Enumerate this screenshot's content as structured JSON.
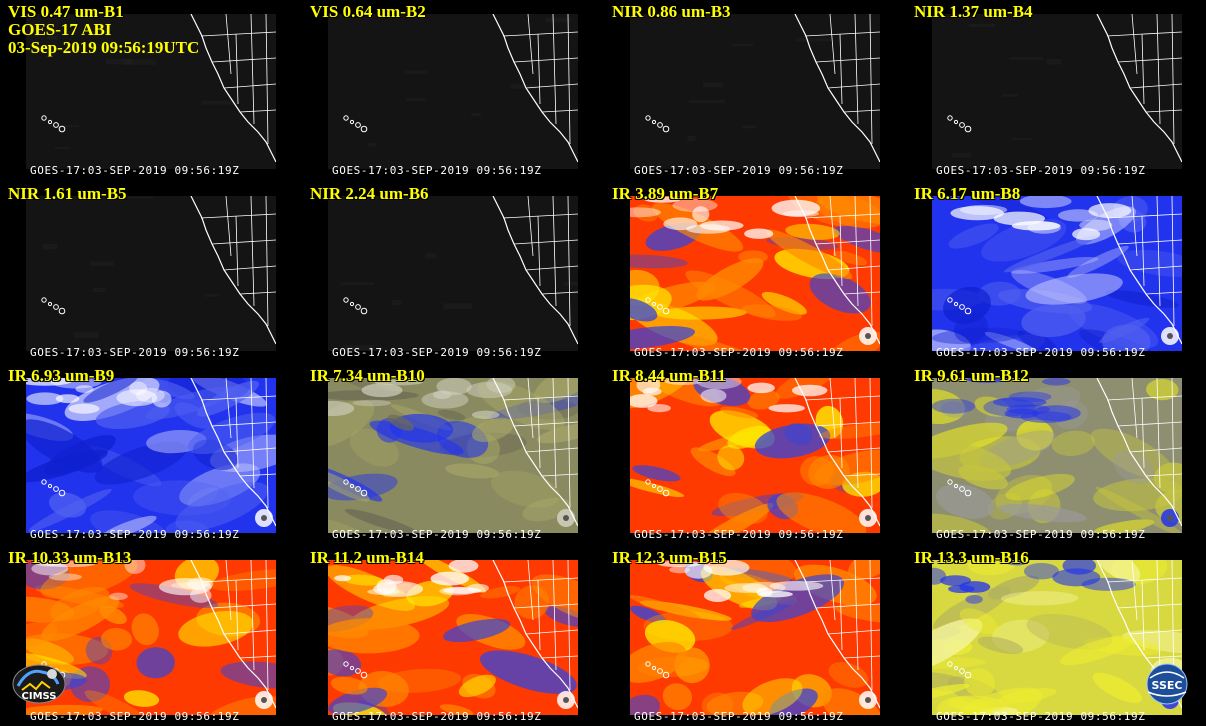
{
  "header": {
    "satellite_line": "GOES-17 ABI",
    "time_line": "03-Sep-2019 09:56:19UTC"
  },
  "panels": [
    {
      "title": "VIS 0.47 um-B1",
      "stamp": "GOES-17:03-SEP-2019 09:56:19Z",
      "palette": "dark"
    },
    {
      "title": "VIS 0.64 um-B2",
      "stamp": "GOES-17:03-SEP-2019 09:56:19Z",
      "palette": "dark"
    },
    {
      "title": "NIR 0.86 um-B3",
      "stamp": "GOES-17:03-SEP-2019 09:56:19Z",
      "palette": "dark"
    },
    {
      "title": "NIR 1.37 um-B4",
      "stamp": "GOES-17:03-SEP-2019 09:56:19Z",
      "palette": "dark"
    },
    {
      "title": "NIR 1.61 um-B5",
      "stamp": "GOES-17:03-SEP-2019 09:56:19Z",
      "palette": "dark"
    },
    {
      "title": "NIR 2.24 um-B6",
      "stamp": "GOES-17:03-SEP-2019 09:56:19Z",
      "palette": "dark"
    },
    {
      "title": "IR 3.89 um-B7",
      "stamp": "GOES-17:03-SEP-2019 09:56:19Z",
      "palette": "red-yellow"
    },
    {
      "title": "IR 6.17 um-B8",
      "stamp": "GOES-17:03-SEP-2019 09:56:19Z",
      "palette": "blue-white"
    },
    {
      "title": "IR 6.93 um-B9",
      "stamp": "GOES-17:03-SEP-2019 09:56:19Z",
      "palette": "blue-white"
    },
    {
      "title": "IR 7.34 um-B10",
      "stamp": "GOES-17:03-SEP-2019 09:56:19Z",
      "palette": "blue-olive"
    },
    {
      "title": "IR 8.44 um-B11",
      "stamp": "GOES-17:03-SEP-2019 09:56:19Z",
      "palette": "red-yellow"
    },
    {
      "title": "IR 9.61 um-B12",
      "stamp": "GOES-17:03-SEP-2019 09:56:19Z",
      "palette": "gray-yellow"
    },
    {
      "title": "IR 10.33 um-B13",
      "stamp": "GOES-17:03-SEP-2019 09:56:19Z",
      "palette": "red-yellow"
    },
    {
      "title": "IR 11.2 um-B14",
      "stamp": "GOES-17:03-SEP-2019 09:56:19Z",
      "palette": "red-yellow"
    },
    {
      "title": "IR 12.3 um-B15",
      "stamp": "GOES-17:03-SEP-2019 09:56:19Z",
      "palette": "red-yellow"
    },
    {
      "title": "IR 13.3 um-B16",
      "stamp": "GOES-17:03-SEP-2019 09:56:19Z",
      "palette": "yellow-gray"
    }
  ],
  "logos": {
    "left": "CIMSS",
    "right": "SSEC"
  },
  "colors": {
    "title_text": "#ffff00",
    "stamp_text": "#ffffff",
    "background": "#000000"
  }
}
